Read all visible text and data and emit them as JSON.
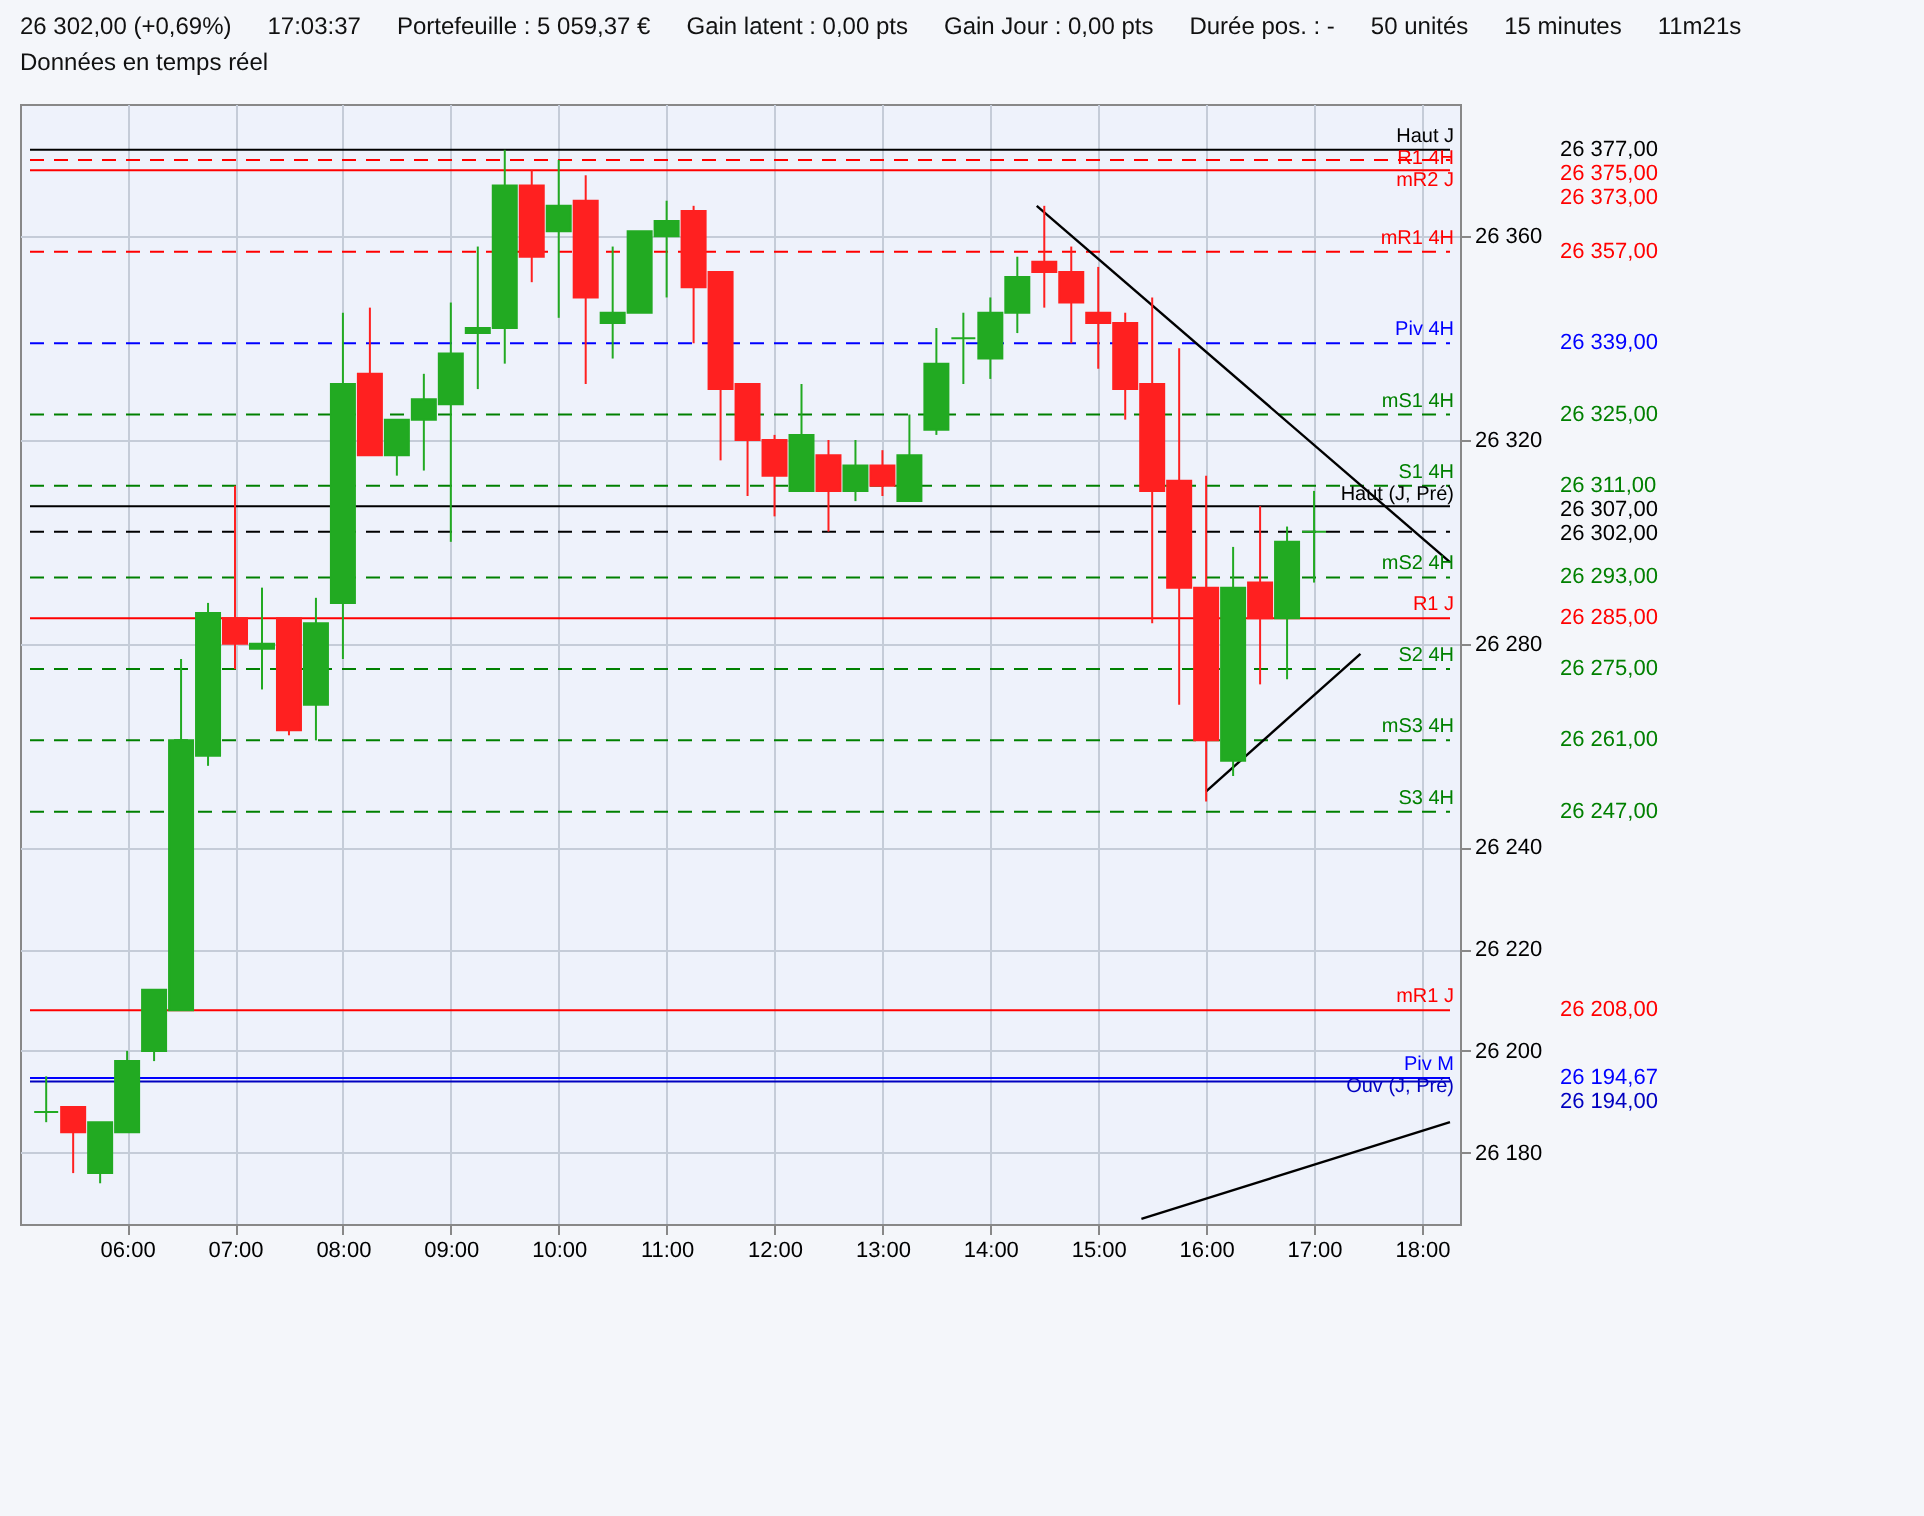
{
  "chart_data": {
    "type": "candlestick",
    "annotations": [
      "26 377,00",
      "26 375,00",
      "26 373,00",
      "26 357,00",
      "26 339,00",
      "26 325,00",
      "26 311,00",
      "26 307,00",
      "26 302,00",
      "26 293,00",
      "26 285,00",
      "26 275,00",
      "26 261,00",
      "26 247,00",
      "26 208,00",
      "26 194,67",
      "26 194,00",
      "26 302,00 (+0,69%)",
      "17:03:37",
      "Portefeuille : 5 059,37 €",
      "Gain latent : 0,00 pts",
      "Gain Jour : 0,00 pts",
      "Durée pos. : -",
      "50 unités",
      "15 minutes",
      "11m21s",
      "Données en temps réel"
    ],
    "xlim": [
      5.1,
      18.26
    ],
    "xticks": [
      {
        "value": 6,
        "label": "06:00"
      },
      {
        "value": 7,
        "label": "07:00"
      },
      {
        "value": 8,
        "label": "08:00"
      },
      {
        "value": 9,
        "label": "09:00"
      },
      {
        "value": 10,
        "label": "10:00"
      },
      {
        "value": 11,
        "label": "11:00"
      },
      {
        "value": 12,
        "label": "12:00"
      },
      {
        "value": 13,
        "label": "13:00"
      },
      {
        "value": 14,
        "label": "14:00"
      },
      {
        "value": 15,
        "label": "15:00"
      },
      {
        "value": 16,
        "label": "16:00"
      },
      {
        "value": 17,
        "label": "17:00"
      },
      {
        "value": 18,
        "label": "18:00"
      }
    ],
    "ylim": [
      26166,
      26386
    ],
    "yticks": [
      {
        "value": 26180,
        "label": "26 180"
      },
      {
        "value": 26200,
        "label": "26 200"
      },
      {
        "value": 26220,
        "label": "26 220"
      },
      {
        "value": 26240,
        "label": "26 240"
      },
      {
        "value": 26280,
        "label": "26 280"
      },
      {
        "value": 26320,
        "label": "26 320"
      },
      {
        "value": 26360,
        "label": "26 360"
      }
    ],
    "grid": true,
    "series": [
      {
        "type": "candlestick",
        "x": [
          5.25,
          5.5,
          5.75,
          6,
          6.25,
          6.5,
          6.75,
          7,
          7.25,
          7.5,
          7.75,
          8,
          8.25,
          8.5,
          8.75,
          9,
          9.25,
          9.5,
          9.75,
          10,
          10.25,
          10.5,
          10.75,
          11,
          11.25,
          11.5,
          11.75,
          12,
          12.25,
          12.5,
          12.75,
          13,
          13.25,
          13.5,
          13.75,
          14,
          14.25,
          14.5,
          14.75,
          15,
          15.25,
          15.5,
          15.75,
          16,
          16.25,
          16.5,
          16.75,
          17
        ],
        "ohlc": [
          [
            26188,
            26195,
            26186,
            26188
          ],
          [
            26189,
            26189,
            26176,
            26184
          ],
          [
            26176,
            26186,
            26174,
            26186
          ],
          [
            26184,
            26200,
            26184,
            26198
          ],
          [
            26200,
            26212,
            26198,
            26212
          ],
          [
            26208,
            26277,
            26208,
            26261
          ],
          [
            26258,
            26288,
            26256,
            26286
          ],
          [
            26285,
            26311,
            26275,
            26280
          ],
          [
            26279,
            26291,
            26271,
            26280
          ],
          [
            26285,
            26285,
            26262,
            26263
          ],
          [
            26268,
            26289,
            26261,
            26284
          ],
          [
            26288,
            26345,
            26277,
            26331
          ],
          [
            26333,
            26346,
            26317,
            26317
          ],
          [
            26317,
            26324,
            26313,
            26324
          ],
          [
            26324,
            26333,
            26314,
            26328
          ],
          [
            26327,
            26347,
            26300,
            26337
          ],
          [
            26341,
            26358,
            26330,
            26342
          ],
          [
            26342,
            26377,
            26335,
            26370
          ],
          [
            26370,
            26373,
            26351,
            26356
          ],
          [
            26361,
            26375,
            26344,
            26366
          ],
          [
            26367,
            26372,
            26331,
            26348
          ],
          [
            26343,
            26358,
            26336,
            26345
          ],
          [
            26345,
            26361,
            26345,
            26361
          ],
          [
            26360,
            26367,
            26348,
            26363
          ],
          [
            26365,
            26366,
            26339,
            26350
          ],
          [
            26353,
            26353,
            26316,
            26330
          ],
          [
            26331,
            26331,
            26309,
            26320
          ],
          [
            26320,
            26321,
            26305,
            26313
          ],
          [
            26310,
            26331,
            26310,
            26321
          ],
          [
            26317,
            26320,
            26302,
            26310
          ],
          [
            26310,
            26320,
            26308,
            26315
          ],
          [
            26315,
            26318,
            26309,
            26311
          ],
          [
            26308,
            26325,
            26308,
            26317
          ],
          [
            26322,
            26342,
            26321,
            26335
          ],
          [
            26340,
            26345,
            26331,
            26340
          ],
          [
            26336,
            26348,
            26332,
            26345
          ],
          [
            26345,
            26356,
            26341,
            26352
          ],
          [
            26355,
            26366,
            26346,
            26353
          ],
          [
            26353,
            26358,
            26339,
            26347
          ],
          [
            26345,
            26354,
            26334,
            26343
          ],
          [
            26343,
            26345,
            26324,
            26330
          ],
          [
            26331,
            26348,
            26284,
            26310
          ],
          [
            26312,
            26338,
            26268,
            26291
          ],
          [
            26291,
            26313,
            26249,
            26261
          ],
          [
            26257,
            26299,
            26254,
            26291
          ],
          [
            26292,
            26307,
            26272,
            26285
          ],
          [
            26285,
            26303,
            26273,
            26300
          ],
          [
            26302,
            26310,
            26292,
            26302
          ]
        ],
        "colors": [
          "#22aa22",
          "#ff2020",
          "#22aa22",
          "#22aa22",
          "#22aa22",
          "#22aa22",
          "#22aa22",
          "#ff2020",
          "#22aa22",
          "#ff2020",
          "#22aa22",
          "#22aa22",
          "#ff2020",
          "#22aa22",
          "#22aa22",
          "#22aa22",
          "#22aa22",
          "#22aa22",
          "#ff2020",
          "#22aa22",
          "#ff2020",
          "#22aa22",
          "#22aa22",
          "#22aa22",
          "#ff2020",
          "#ff2020",
          "#ff2020",
          "#ff2020",
          "#22aa22",
          "#ff2020",
          "#22aa22",
          "#ff2020",
          "#22aa22",
          "#22aa22",
          "#22aa22",
          "#22aa22",
          "#22aa22",
          "#ff2020",
          "#ff2020",
          "#ff2020",
          "#ff2020",
          "#ff2020",
          "#ff2020",
          "#ff2020",
          "#22aa22",
          "#ff2020",
          "#22aa22",
          "#22aa22"
        ]
      },
      {
        "type": "line",
        "x": [
          14.43,
          18.26
        ],
        "values": [
          26366,
          26296
        ],
        "color": "#000000"
      },
      {
        "type": "line",
        "x": [
          16.0,
          17.43
        ],
        "values": [
          26251,
          26278
        ],
        "color": "#000000"
      },
      {
        "type": "line",
        "x": [
          15.4,
          18.26
        ],
        "values": [
          26167,
          26186
        ],
        "color": "#000000"
      }
    ],
    "ref_lines": [
      {
        "axis": "y",
        "value": 26377,
        "label": "Haut J",
        "color": "#000000",
        "line_style": "solid"
      },
      {
        "axis": "y",
        "value": 26375,
        "label": "R1 4H",
        "color": "#ff0000",
        "line_style": "dashed"
      },
      {
        "axis": "y",
        "value": 26373,
        "label": "mR2 J",
        "color": "#ff0000",
        "line_style": "solid"
      },
      {
        "axis": "y",
        "value": 26357,
        "label": "mR1 4H",
        "color": "#ff0000",
        "line_style": "dashed"
      },
      {
        "axis": "y",
        "value": 26339,
        "label": "Piv 4H",
        "color": "#0000ff",
        "line_style": "dashed"
      },
      {
        "axis": "y",
        "value": 26325,
        "label": "mS1 4H",
        "color": "#008000",
        "line_style": "dashed"
      },
      {
        "axis": "y",
        "value": 26311,
        "label": "S1 4H",
        "color": "#008000",
        "line_style": "dashed"
      },
      {
        "axis": "y",
        "value": 26307,
        "label": "Haut (J, Pré)",
        "color": "#000000",
        "line_style": "solid"
      },
      {
        "axis": "y",
        "value": 26302,
        "color": "#000000",
        "line_style": "dashed"
      },
      {
        "axis": "y",
        "value": 26293,
        "label": "mS2 4H",
        "color": "#008000",
        "line_style": "dashed"
      },
      {
        "axis": "y",
        "value": 26285,
        "label": "R1 J",
        "color": "#ff0000",
        "line_style": "solid"
      },
      {
        "axis": "y",
        "value": 26275,
        "label": "S2 4H",
        "color": "#008000",
        "line_style": "dashed"
      },
      {
        "axis": "y",
        "value": 26261,
        "label": "mS3 4H",
        "color": "#008000",
        "line_style": "dashed"
      },
      {
        "axis": "y",
        "value": 26247,
        "label": "S3 4H",
        "color": "#008000",
        "line_style": "dashed"
      },
      {
        "axis": "y",
        "value": 26208,
        "label": "mR1 J",
        "color": "#ff0000",
        "line_style": "solid"
      },
      {
        "axis": "y",
        "value": 26194.67,
        "label": "Piv M",
        "color": "#0000ff",
        "line_style": "solid"
      },
      {
        "axis": "y",
        "value": 26194,
        "label": "Ouv (J, Pré)",
        "color": "#0000c0",
        "line_style": "solid"
      }
    ]
  }
}
